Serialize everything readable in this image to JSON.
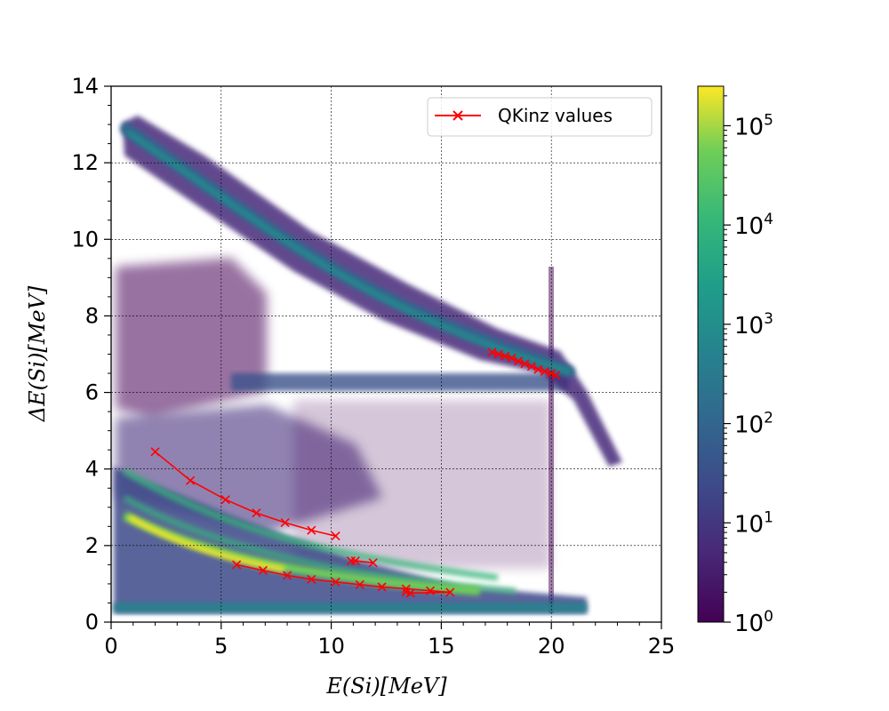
{
  "chart_data": {
    "type": "heatmap",
    "title": "",
    "xlabel": "E(Si)[MeV]",
    "ylabel": "ΔE(Si)[MeV]",
    "xlim": [
      0,
      25
    ],
    "ylim": [
      0,
      14
    ],
    "x_ticks": [
      "0",
      "5",
      "10",
      "15",
      "20",
      "25"
    ],
    "y_ticks": [
      "0",
      "2",
      "4",
      "6",
      "8",
      "10",
      "12",
      "14"
    ],
    "grid": true,
    "legend": {
      "placement": "top-right",
      "entries": [
        "QKinz values"
      ]
    },
    "colorbar": {
      "scale": "log",
      "colormap": "viridis",
      "range": [
        1,
        250000
      ],
      "ticks": [
        {
          "base": "10",
          "exp": "0"
        },
        {
          "base": "10",
          "exp": "1"
        },
        {
          "base": "10",
          "exp": "2"
        },
        {
          "base": "10",
          "exp": "3"
        },
        {
          "base": "10",
          "exp": "4"
        },
        {
          "base": "10",
          "exp": "5"
        }
      ]
    },
    "series": [
      {
        "name": "QKinz values",
        "color": "#ff0000",
        "marker": "x",
        "segments": [
          {
            "x": [
              2.0,
              3.6,
              5.2,
              6.6,
              7.9,
              9.1,
              10.2
            ],
            "y": [
              4.45,
              3.7,
              3.2,
              2.85,
              2.6,
              2.4,
              2.25
            ]
          },
          {
            "x": [
              5.7,
              6.9,
              8.0,
              9.1,
              10.2,
              11.3,
              12.3,
              13.4,
              14.5,
              15.4,
              13.6,
              13.4
            ],
            "y": [
              1.5,
              1.35,
              1.22,
              1.12,
              1.05,
              0.98,
              0.92,
              0.87,
              0.82,
              0.78,
              0.76,
              0.79
            ]
          },
          {
            "x": [
              10.9,
              11.1,
              11.9
            ],
            "y": [
              1.6,
              1.6,
              1.55
            ]
          },
          {
            "x": [
              17.3,
              17.6,
              17.9,
              18.2,
              18.5,
              18.8,
              19.1,
              19.4,
              19.7,
              20.0,
              20.2
            ],
            "y": [
              7.05,
              7.0,
              6.95,
              6.9,
              6.82,
              6.75,
              6.68,
              6.6,
              6.55,
              6.5,
              6.45
            ]
          }
        ]
      }
    ]
  }
}
